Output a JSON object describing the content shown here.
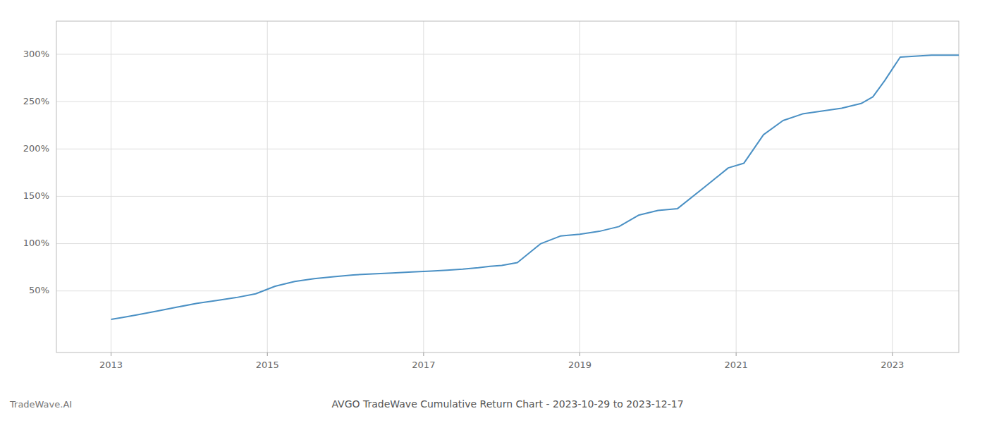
{
  "chart_data": {
    "type": "line",
    "title": "AVGO TradeWave Cumulative Return Chart - 2023-10-29 to 2023-12-17",
    "annotations": [
      "TradeWave.AI"
    ],
    "x": [
      2013.0,
      2013.15,
      2013.35,
      2013.6,
      2013.85,
      2014.1,
      2014.35,
      2014.6,
      2014.85,
      2015.1,
      2015.35,
      2015.6,
      2015.85,
      2016.1,
      2016.35,
      2016.6,
      2016.85,
      2017.1,
      2017.3,
      2017.5,
      2017.7,
      2017.85,
      2018.0,
      2018.2,
      2018.5,
      2018.75,
      2019.0,
      2019.25,
      2019.5,
      2019.75,
      2020.0,
      2020.25,
      2020.6,
      2020.9,
      2021.1,
      2021.35,
      2021.6,
      2021.85,
      2022.1,
      2022.35,
      2022.6,
      2022.75,
      2022.9,
      2023.1,
      2023.5,
      2023.85
    ],
    "values": [
      20,
      22,
      25,
      29,
      33,
      37,
      40,
      43,
      47,
      55,
      60,
      63,
      65,
      67,
      68,
      69,
      70,
      71,
      72,
      73,
      74.5,
      76,
      77,
      80,
      100,
      108,
      110,
      113,
      118,
      130,
      135,
      137,
      160,
      180,
      185,
      215,
      230,
      237,
      240,
      243,
      248,
      255,
      272,
      297,
      299,
      299
    ],
    "color": "#4a90c4",
    "xlim": [
      2012.3,
      2023.85
    ],
    "ylim": [
      -15,
      335
    ],
    "xticks": [
      2013,
      2015,
      2017,
      2019,
      2021,
      2023
    ],
    "yticks": [
      {
        "value": 50,
        "label": "50%"
      },
      {
        "value": 100,
        "label": "100%"
      },
      {
        "value": 150,
        "label": "150%"
      },
      {
        "value": 200,
        "label": "200%"
      },
      {
        "value": 250,
        "label": "250%"
      },
      {
        "value": 300,
        "label": "300%"
      }
    ],
    "grid": true
  }
}
